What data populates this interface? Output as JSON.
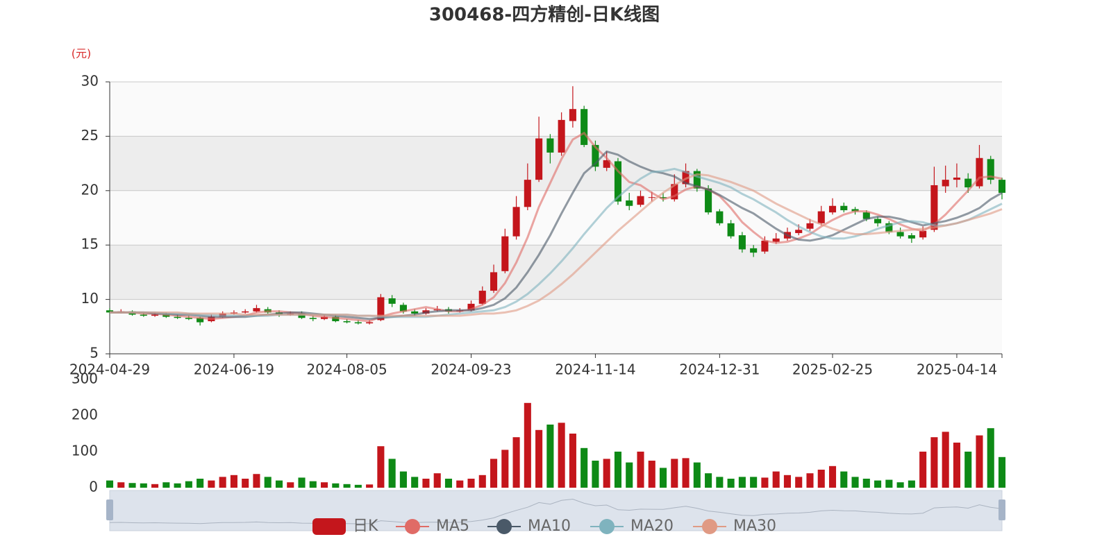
{
  "chart_data": {
    "type": "candlestick",
    "title": "300468-四方精创-日K线图",
    "y_axis_label": "(元)",
    "candle_name": "日K",
    "up_color": "#c4161c",
    "down_color": "#0e8a16",
    "categories": [
      "2024-04-29",
      null,
      null,
      null,
      null,
      null,
      null,
      null,
      null,
      null,
      null,
      "2024-06-19",
      null,
      null,
      null,
      null,
      null,
      null,
      null,
      null,
      null,
      "2024-08-05",
      null,
      null,
      null,
      null,
      null,
      null,
      null,
      null,
      null,
      null,
      "2024-09-23",
      null,
      null,
      null,
      null,
      null,
      null,
      null,
      null,
      null,
      null,
      "2024-11-14",
      null,
      null,
      null,
      null,
      null,
      null,
      null,
      null,
      null,
      null,
      "2024-12-31",
      null,
      null,
      null,
      null,
      null,
      null,
      null,
      null,
      null,
      "2025-02-25",
      null,
      null,
      null,
      null,
      null,
      null,
      null,
      null,
      null,
      null,
      "2025-04-14",
      null,
      null,
      null,
      null
    ],
    "open": [
      9.0,
      8.8,
      8.9,
      8.6,
      8.5,
      8.6,
      8.4,
      8.3,
      8.3,
      8.0,
      8.4,
      8.7,
      8.8,
      8.9,
      9.1,
      8.8,
      8.6,
      8.7,
      8.3,
      8.2,
      8.4,
      8.0,
      7.9,
      7.8,
      8.1,
      10.1,
      9.5,
      8.9,
      8.7,
      9.0,
      9.1,
      8.9,
      9.0,
      9.6,
      10.8,
      12.6,
      15.8,
      18.5,
      21.0,
      24.8,
      23.5,
      26.4,
      27.5,
      24.2,
      22.1,
      22.7,
      19.1,
      18.7,
      19.4,
      19.4,
      19.2,
      20.6,
      21.8,
      20.2,
      18.1,
      17.0,
      15.9,
      14.7,
      14.4,
      15.3,
      15.6,
      16.1,
      16.5,
      17.0,
      18.0,
      18.6,
      18.3,
      18.0,
      17.4,
      17.0,
      16.2,
      15.9,
      15.7,
      16.4,
      20.4,
      21.0,
      21.1,
      20.4,
      22.9,
      21.0
    ],
    "close": [
      8.8,
      8.9,
      8.6,
      8.5,
      8.6,
      8.4,
      8.3,
      8.2,
      7.9,
      8.4,
      8.7,
      8.8,
      8.9,
      9.2,
      8.8,
      8.6,
      8.7,
      8.3,
      8.2,
      8.4,
      8.0,
      7.9,
      7.8,
      7.9,
      10.2,
      9.6,
      8.9,
      8.7,
      9.0,
      9.1,
      8.9,
      9.0,
      9.6,
      10.8,
      12.5,
      15.8,
      18.5,
      21.0,
      24.8,
      23.5,
      26.5,
      27.5,
      24.2,
      22.2,
      22.8,
      19.0,
      18.6,
      19.5,
      19.4,
      19.3,
      20.6,
      21.8,
      20.2,
      18.0,
      17.0,
      15.8,
      14.6,
      14.3,
      15.4,
      15.6,
      16.2,
      16.4,
      17.0,
      18.1,
      18.6,
      18.2,
      18.1,
      17.4,
      17.0,
      16.2,
      15.8,
      15.6,
      16.3,
      20.5,
      21.0,
      21.2,
      20.3,
      23.0,
      21.0,
      19.8
    ],
    "high": [
      9.2,
      9.1,
      9.0,
      8.8,
      8.8,
      8.8,
      8.6,
      8.5,
      8.4,
      8.6,
      8.9,
      9.0,
      9.1,
      9.5,
      9.3,
      9.0,
      8.9,
      8.9,
      8.5,
      8.6,
      8.6,
      8.2,
      8.1,
      8.1,
      10.5,
      10.4,
      9.7,
      9.1,
      9.2,
      9.4,
      9.3,
      9.2,
      9.9,
      11.2,
      13.2,
      16.5,
      19.5,
      22.5,
      26.8,
      25.2,
      27.2,
      29.6,
      27.8,
      24.6,
      23.6,
      23.0,
      19.8,
      20.0,
      19.9,
      19.8,
      21.5,
      22.5,
      22.0,
      20.5,
      18.3,
      17.3,
      16.2,
      15.0,
      15.8,
      16.1,
      16.6,
      16.9,
      17.4,
      18.6,
      19.3,
      18.9,
      18.5,
      18.2,
      17.6,
      17.2,
      16.6,
      16.1,
      16.7,
      22.2,
      22.3,
      22.5,
      21.6,
      24.2,
      23.2,
      21.2
    ],
    "low": [
      8.7,
      8.7,
      8.5,
      8.4,
      8.4,
      8.3,
      8.2,
      8.1,
      7.6,
      7.9,
      8.3,
      8.6,
      8.7,
      8.8,
      8.7,
      8.4,
      8.5,
      8.2,
      8.0,
      8.1,
      7.9,
      7.8,
      7.7,
      7.7,
      8.0,
      9.3,
      8.7,
      8.5,
      8.6,
      8.9,
      8.7,
      8.8,
      8.9,
      9.5,
      10.6,
      12.4,
      15.5,
      18.2,
      20.8,
      22.5,
      23.2,
      25.8,
      24.0,
      21.8,
      21.8,
      18.7,
      18.2,
      18.5,
      19.0,
      19.0,
      19.0,
      20.3,
      19.9,
      17.8,
      16.8,
      15.6,
      14.3,
      13.9,
      14.2,
      15.1,
      15.4,
      15.9,
      16.3,
      16.8,
      17.8,
      18.0,
      17.8,
      17.2,
      16.7,
      16.0,
      15.6,
      15.2,
      15.5,
      16.2,
      19.8,
      20.3,
      19.8,
      20.2,
      20.6,
      19.2
    ],
    "ylim": [
      5,
      30
    ],
    "yticks": [
      5,
      10,
      15,
      20,
      25,
      30
    ],
    "grid": true,
    "split_area": true,
    "ma_series": [
      {
        "name": "MA5",
        "color": "#e06b66",
        "values": [
          8.8,
          8.8,
          8.8,
          8.7,
          8.7,
          8.6,
          8.5,
          8.4,
          8.3,
          8.2,
          8.3,
          8.4,
          8.5,
          8.8,
          8.9,
          8.9,
          8.8,
          8.7,
          8.5,
          8.4,
          8.3,
          8.2,
          8.1,
          8.0,
          8.4,
          8.7,
          8.9,
          9.1,
          9.3,
          9.1,
          8.9,
          8.9,
          9.1,
          9.5,
          10.2,
          11.5,
          13.4,
          15.7,
          18.5,
          20.7,
          22.9,
          24.7,
          25.3,
          24.0,
          23.0,
          21.8,
          20.8,
          20.5,
          19.8,
          19.2,
          19.5,
          20.1,
          20.4,
          20.1,
          19.5,
          18.4,
          17.1,
          16.2,
          15.4,
          15.2,
          15.3,
          15.6,
          16.0,
          16.7,
          17.3,
          17.8,
          18.1,
          18.1,
          17.8,
          17.4,
          16.9,
          16.5,
          16.3,
          16.9,
          17.8,
          18.9,
          20.0,
          21.2,
          21.3,
          21.1
        ]
      },
      {
        "name": "MA10",
        "color": "#4a5968",
        "values": [
          8.8,
          8.8,
          8.8,
          8.8,
          8.7,
          8.7,
          8.6,
          8.6,
          8.5,
          8.4,
          8.4,
          8.4,
          8.4,
          8.5,
          8.6,
          8.7,
          8.8,
          8.8,
          8.7,
          8.6,
          8.5,
          8.4,
          8.3,
          8.2,
          8.3,
          8.4,
          8.5,
          8.6,
          8.8,
          8.9,
          9.0,
          9.0,
          9.0,
          9.2,
          9.5,
          10.1,
          11.1,
          12.5,
          14.1,
          15.9,
          17.9,
          19.8,
          21.6,
          22.5,
          23.6,
          23.3,
          22.7,
          22.2,
          21.8,
          21.6,
          21.3,
          20.7,
          20.4,
          20.1,
          19.6,
          19.0,
          18.4,
          17.9,
          17.2,
          16.5,
          15.9,
          15.5,
          15.4,
          15.6,
          15.9,
          16.4,
          16.9,
          17.4,
          17.6,
          17.6,
          17.4,
          17.1,
          16.8,
          17.0,
          17.2,
          17.5,
          17.9,
          18.4,
          19.2,
          19.8
        ]
      },
      {
        "name": "MA20",
        "color": "#7fb3be",
        "values": [
          8.8,
          8.8,
          8.8,
          8.8,
          8.8,
          8.7,
          8.7,
          8.7,
          8.6,
          8.6,
          8.5,
          8.5,
          8.5,
          8.5,
          8.5,
          8.6,
          8.6,
          8.6,
          8.6,
          8.6,
          8.6,
          8.6,
          8.5,
          8.5,
          8.4,
          8.4,
          8.4,
          8.4,
          8.4,
          8.5,
          8.6,
          8.7,
          8.8,
          8.9,
          9.0,
          9.3,
          9.8,
          10.5,
          11.4,
          12.4,
          13.5,
          14.7,
          16.0,
          17.2,
          18.4,
          19.4,
          20.3,
          21.1,
          21.7,
          21.8,
          22.0,
          21.7,
          21.3,
          21.0,
          20.7,
          20.3,
          19.7,
          19.2,
          18.6,
          18.0,
          17.3,
          16.7,
          16.2,
          15.8,
          15.6,
          15.6,
          15.8,
          16.1,
          16.5,
          16.8,
          17.1,
          17.2,
          17.1,
          16.8,
          16.8,
          17.0,
          17.3,
          17.8,
          18.3,
          18.8
        ]
      },
      {
        "name": "MA30",
        "color": "#e09a84",
        "values": [
          8.8,
          8.8,
          8.8,
          8.8,
          8.8,
          8.8,
          8.8,
          8.7,
          8.7,
          8.7,
          8.7,
          8.7,
          8.6,
          8.6,
          8.6,
          8.6,
          8.6,
          8.6,
          8.6,
          8.6,
          8.6,
          8.6,
          8.5,
          8.5,
          8.5,
          8.5,
          8.5,
          8.5,
          8.5,
          8.5,
          8.5,
          8.5,
          8.6,
          8.7,
          8.7,
          8.8,
          9.0,
          9.4,
          9.9,
          10.6,
          11.4,
          12.3,
          13.3,
          14.3,
          15.3,
          16.3,
          17.2,
          18.1,
          19.0,
          19.8,
          20.5,
          21.1,
          21.5,
          21.4,
          21.1,
          20.8,
          20.4,
          20.0,
          19.4,
          18.8,
          18.3,
          17.8,
          17.3,
          16.9,
          16.5,
          16.2,
          16.0,
          16.0,
          16.1,
          16.2,
          16.3,
          16.4,
          16.5,
          16.6,
          16.8,
          17.0,
          17.3,
          17.6,
          17.9,
          18.3
        ]
      }
    ],
    "volume": {
      "values": [
        20,
        15,
        13,
        12,
        10,
        15,
        12,
        18,
        25,
        20,
        30,
        35,
        25,
        38,
        30,
        20,
        15,
        28,
        18,
        15,
        12,
        10,
        8,
        9,
        115,
        80,
        45,
        30,
        25,
        40,
        25,
        20,
        25,
        35,
        80,
        105,
        140,
        235,
        160,
        175,
        180,
        150,
        110,
        75,
        80,
        100,
        70,
        100,
        75,
        55,
        80,
        82,
        70,
        40,
        30,
        25,
        30,
        30,
        28,
        45,
        35,
        30,
        40,
        50,
        60,
        45,
        30,
        25,
        20,
        22,
        15,
        20,
        100,
        140,
        155,
        125,
        100,
        145,
        165,
        85
      ],
      "ylim": [
        0,
        300
      ],
      "yticks": [
        0,
        100,
        200,
        300
      ]
    }
  }
}
